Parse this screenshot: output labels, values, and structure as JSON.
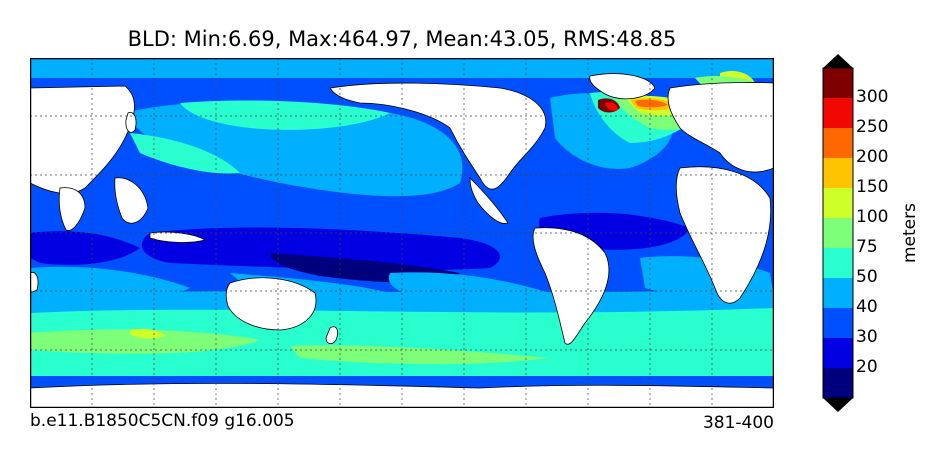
{
  "title": "BLD: Min:6.69, Max:464.97, Mean:43.05, RMS:48.85",
  "caption_left": "b.e11.B1850C5CN.f09 g16.005",
  "caption_right": "381-400",
  "colorbar": {
    "label": "meters",
    "ticks": [
      "20",
      "30",
      "40",
      "50",
      "75",
      "100",
      "150",
      "200",
      "250",
      "300"
    ],
    "colors": [
      "#00007f",
      "#0000e3",
      "#0050ff",
      "#00b0ff",
      "#29ffce",
      "#7dff7a",
      "#ceff29",
      "#ffc400",
      "#ff6800",
      "#f10800",
      "#7f0000"
    ],
    "extend_low_color": "#000000",
    "extend_high_color": "#000000"
  },
  "map": {
    "projection": "cylindrical",
    "land_color": "#ffffff",
    "grid": "dotted"
  }
}
